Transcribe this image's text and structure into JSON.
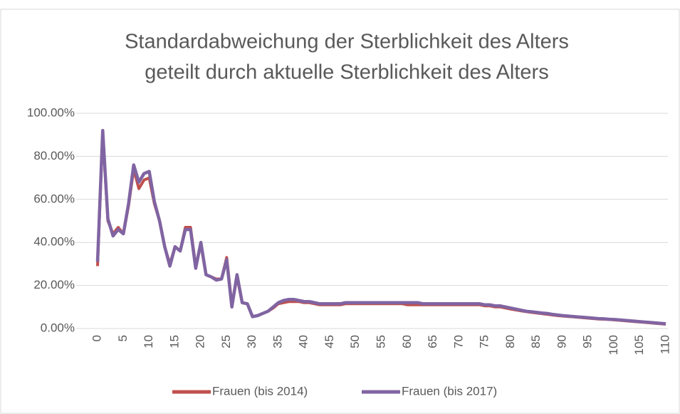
{
  "chart_data": {
    "type": "line",
    "title": [
      "Standardabweichung der Sterblichkeit des Alters",
      "geteilt durch aktuelle Sterblichkeit des Alters"
    ],
    "x": [
      0,
      1,
      2,
      3,
      4,
      5,
      6,
      7,
      8,
      9,
      10,
      11,
      12,
      13,
      14,
      15,
      16,
      17,
      18,
      19,
      20,
      21,
      22,
      23,
      24,
      25,
      26,
      27,
      28,
      29,
      30,
      31,
      32,
      33,
      34,
      35,
      36,
      37,
      38,
      39,
      40,
      41,
      42,
      43,
      44,
      45,
      46,
      47,
      48,
      49,
      50,
      51,
      52,
      53,
      54,
      55,
      56,
      57,
      58,
      59,
      60,
      61,
      62,
      63,
      64,
      65,
      66,
      67,
      68,
      69,
      70,
      71,
      72,
      73,
      74,
      75,
      76,
      77,
      78,
      79,
      80,
      81,
      82,
      83,
      84,
      85,
      86,
      87,
      88,
      89,
      90,
      91,
      92,
      93,
      94,
      95,
      96,
      97,
      98,
      99,
      100,
      101,
      102,
      103,
      104,
      105,
      106,
      107,
      108,
      109,
      110
    ],
    "xlim": [
      0,
      110
    ],
    "xticks": [
      0,
      5,
      10,
      15,
      20,
      25,
      30,
      35,
      40,
      45,
      50,
      55,
      60,
      65,
      70,
      75,
      80,
      85,
      90,
      95,
      100,
      105,
      110
    ],
    "ylim": [
      0,
      100
    ],
    "yticks": [
      {
        "value": 0,
        "label": "0.00%"
      },
      {
        "value": 20,
        "label": "20.00%"
      },
      {
        "value": 40,
        "label": "40.00%"
      },
      {
        "value": 60,
        "label": "60.00%"
      },
      {
        "value": 80,
        "label": "80.00%"
      },
      {
        "value": 100,
        "label": "100.00%"
      }
    ],
    "grid": true,
    "legend": "bottom",
    "series": [
      {
        "name": "Frauen (bis 2014)",
        "color": "#c0504d",
        "values": [
          29,
          91,
          50,
          44,
          47,
          44,
          57,
          74,
          65,
          69,
          70,
          58,
          50,
          38,
          30,
          38,
          36,
          47,
          47,
          29,
          39,
          25,
          24,
          23,
          23,
          33,
          11,
          24,
          12,
          11.5,
          5.5,
          6,
          7,
          8,
          9.5,
          11.5,
          12,
          12.5,
          12.5,
          12.5,
          12,
          12,
          11.5,
          11,
          11,
          11,
          11,
          11,
          11.5,
          11.5,
          11.5,
          11.5,
          11.5,
          11.5,
          11.5,
          11.5,
          11.5,
          11.5,
          11.5,
          11.5,
          11,
          11,
          11,
          11,
          11,
          11,
          11,
          11,
          11,
          11,
          11,
          11,
          11,
          11,
          11,
          10.5,
          10.5,
          10,
          10,
          9.5,
          9,
          8.6,
          8.2,
          7.8,
          7.5,
          7.2,
          6.9,
          6.6,
          6.3,
          6,
          5.8,
          5.6,
          5.4,
          5.2,
          5,
          4.8,
          4.6,
          4.4,
          4.3,
          4.2,
          4,
          3.8,
          3.6,
          3.4,
          3.2,
          3,
          2.8,
          2.6,
          2.4,
          2.2,
          2
        ]
      },
      {
        "name": "Frauen (bis 2017)",
        "color": "#8064a2",
        "values": [
          31,
          92,
          51,
          43,
          46,
          44,
          58,
          76,
          68,
          72,
          73,
          59,
          50,
          38,
          29,
          38,
          36,
          46,
          46,
          28,
          40,
          25,
          24,
          22.5,
          23,
          32,
          10,
          25,
          12,
          11.5,
          5.5,
          6,
          7,
          8,
          10,
          12,
          13,
          13.5,
          13.5,
          13,
          12.5,
          12.5,
          12,
          11.5,
          11.5,
          11.5,
          11.5,
          11.5,
          12,
          12,
          12,
          12,
          12,
          12,
          12,
          12,
          12,
          12,
          12,
          12,
          12,
          12,
          12,
          11.5,
          11.5,
          11.5,
          11.5,
          11.5,
          11.5,
          11.5,
          11.5,
          11.5,
          11.5,
          11.5,
          11.5,
          11,
          11,
          10.5,
          10.5,
          10,
          9.5,
          9,
          8.5,
          8,
          7.8,
          7.5,
          7.2,
          7,
          6.6,
          6.3,
          6,
          5.8,
          5.6,
          5.4,
          5.2,
          5,
          4.8,
          4.6,
          4.5,
          4.3,
          4.2,
          4,
          3.8,
          3.6,
          3.4,
          3.2,
          3,
          2.8,
          2.6,
          2.4,
          2.2
        ]
      }
    ]
  }
}
